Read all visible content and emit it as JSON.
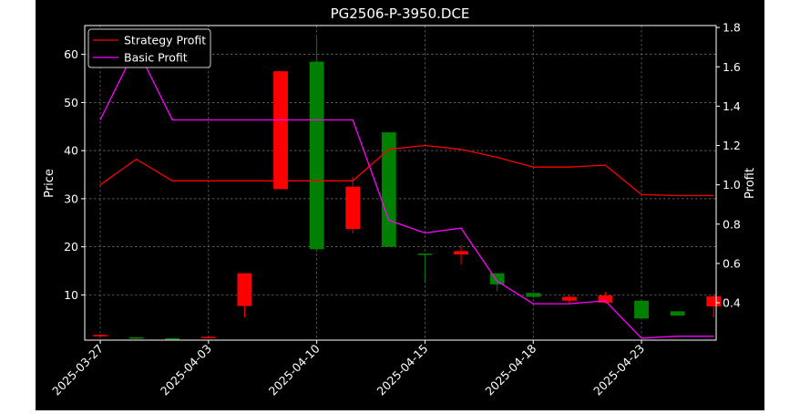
{
  "chart_data": {
    "type": "candlestick",
    "title": "PG2506-P-3950.DCE",
    "ylabel": "Price",
    "ylabel_right": "Profit",
    "xlabel": "",
    "ylim": [
      0.6,
      66.0
    ],
    "ylim_right": [
      0.21,
      1.81
    ],
    "yticks": [
      10,
      20,
      30,
      40,
      50,
      60
    ],
    "yticks_right": [
      0.4,
      0.6,
      0.8,
      1.0,
      1.2,
      1.4,
      1.6,
      1.8
    ],
    "x_tick_labels": [
      {
        "index": 0,
        "label": "2025-03-27"
      },
      {
        "index": 3,
        "label": "2025-04-03"
      },
      {
        "index": 6,
        "label": "2025-04-10"
      },
      {
        "index": 9,
        "label": "2025-04-15"
      },
      {
        "index": 12,
        "label": "2025-04-18"
      },
      {
        "index": 15,
        "label": "2025-04-23"
      }
    ],
    "grid": true,
    "legend_position": "top-left",
    "colors": {
      "up": "#008000",
      "down": "#ff0000",
      "strategy": "#ff0000",
      "basic": "#ff00ff",
      "background": "#000000",
      "text": "#ffffff"
    },
    "candles": [
      {
        "i": 0,
        "open": 1.7,
        "close": 1.4,
        "high": 1.8,
        "low": 1.3
      },
      {
        "i": 1,
        "open": 0.9,
        "close": 1.2,
        "high": 1.2,
        "low": 0.8
      },
      {
        "i": 2,
        "open": 0.8,
        "close": 1.0,
        "high": 1.0,
        "low": 0.7
      },
      {
        "i": 3,
        "open": 1.3,
        "close": 1.1,
        "high": 1.3,
        "low": 1.0
      },
      {
        "i": 4,
        "open": 14.5,
        "close": 7.7,
        "high": 14.5,
        "low": 5.3
      },
      {
        "i": 5,
        "open": 56.5,
        "close": 32.0,
        "high": 56.5,
        "low": 32.0
      },
      {
        "i": 6,
        "open": 19.5,
        "close": 58.5,
        "high": 63.5,
        "low": 19.0
      },
      {
        "i": 7,
        "open": 32.5,
        "close": 23.7,
        "high": 34.5,
        "low": 22.8
      },
      {
        "i": 8,
        "open": 20.0,
        "close": 43.8,
        "high": 43.8,
        "low": 20.0
      },
      {
        "i": 9,
        "open": 18.3,
        "close": 18.6,
        "high": 18.6,
        "low": 12.8
      },
      {
        "i": 10,
        "open": 19.1,
        "close": 18.4,
        "high": 20.3,
        "low": 16.3
      },
      {
        "i": 11,
        "open": 12.2,
        "close": 14.5,
        "high": 14.5,
        "low": 10.8
      },
      {
        "i": 12,
        "open": 9.6,
        "close": 10.4,
        "high": 10.4,
        "low": 9.3
      },
      {
        "i": 13,
        "open": 9.6,
        "close": 8.8,
        "high": 10.0,
        "low": 8.2
      },
      {
        "i": 14,
        "open": 9.9,
        "close": 8.4,
        "high": 10.6,
        "low": 8.2
      },
      {
        "i": 15,
        "open": 5.1,
        "close": 8.8,
        "high": 8.8,
        "low": 5.1
      },
      {
        "i": 16,
        "open": 5.7,
        "close": 6.6,
        "high": 6.6,
        "low": 5.7
      },
      {
        "i": 17,
        "open": 9.7,
        "close": 7.6,
        "high": 10.0,
        "low": 5.3
      }
    ],
    "series": [
      {
        "name": "Strategy Profit",
        "axis": "right",
        "values": [
          1.0,
          1.13,
          1.02,
          1.02,
          1.02,
          1.02,
          1.02,
          1.02,
          1.18,
          1.2,
          1.18,
          1.14,
          1.09,
          1.09,
          1.1,
          0.95,
          0.945,
          0.945
        ]
      },
      {
        "name": "Basic Profit",
        "axis": "right",
        "values": [
          1.33,
          1.7,
          1.33,
          1.33,
          1.33,
          1.33,
          1.33,
          1.33,
          0.82,
          0.755,
          0.78,
          0.51,
          0.395,
          0.395,
          0.41,
          0.22,
          0.23,
          0.23
        ]
      }
    ]
  }
}
